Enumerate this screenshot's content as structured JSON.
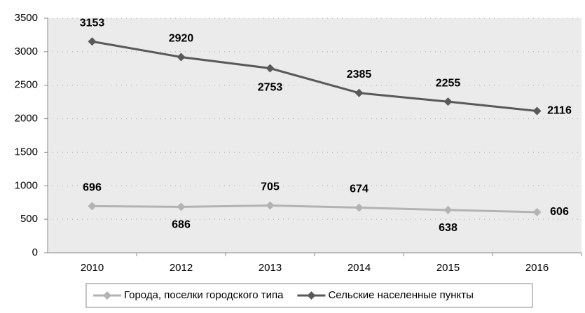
{
  "chart_data": {
    "type": "line",
    "categories": [
      "2010",
      "2012",
      "2013",
      "2014",
      "2015",
      "2016"
    ],
    "series": [
      {
        "name": "Города, поселки городского типа",
        "color": "#b3b3b3",
        "values": [
          696,
          686,
          705,
          674,
          638,
          606
        ]
      },
      {
        "name": "Сельские населенные пункты",
        "color": "#595959",
        "values": [
          3153,
          2920,
          2753,
          2385,
          2255,
          2116
        ]
      }
    ],
    "ylim": [
      0,
      3500
    ],
    "yticks": [
      0,
      500,
      1000,
      1500,
      2000,
      2500,
      3000,
      3500
    ],
    "grid": true,
    "legend": "bottom"
  }
}
